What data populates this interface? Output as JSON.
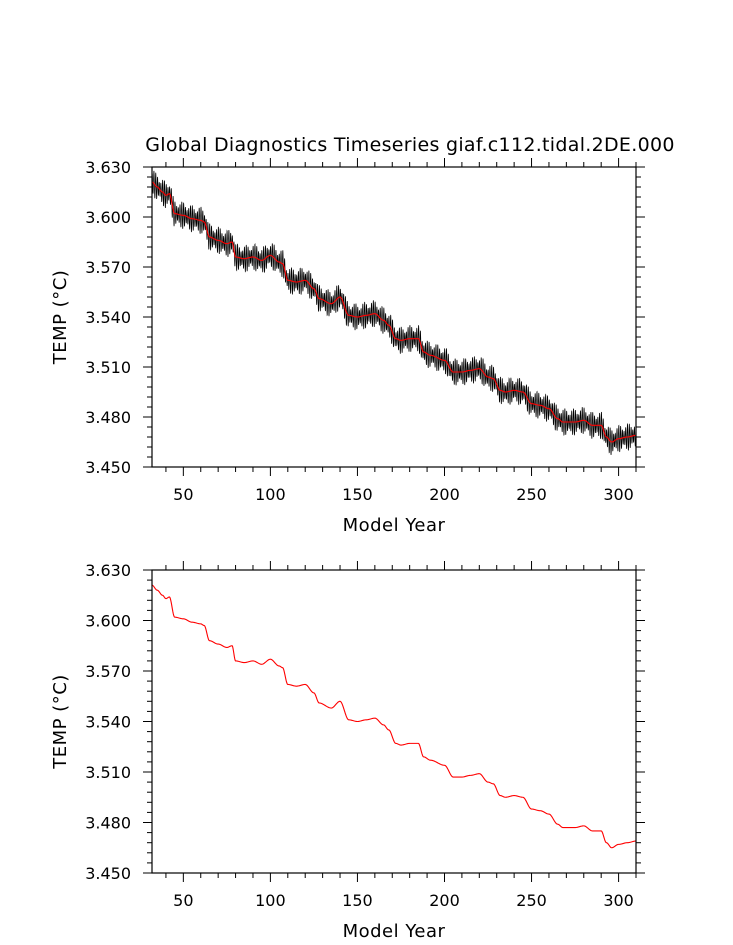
{
  "title": "Global Diagnostics Timeseries giaf.c112.tidal.2DE.000",
  "chart_data": [
    {
      "type": "line",
      "title": "Global Diagnostics Timeseries giaf.c112.tidal.2DE.000",
      "xlabel": "Model Year",
      "ylabel": "TEMP (°C)",
      "xlim": [
        32,
        310
      ],
      "ylim": [
        3.45,
        3.63
      ],
      "xticks": [
        50,
        100,
        150,
        200,
        250,
        300
      ],
      "xtick_labels": [
        "50",
        "100",
        "150",
        "200",
        "250",
        "300"
      ],
      "yticks": [
        3.45,
        3.48,
        3.51,
        3.54,
        3.57,
        3.6,
        3.63
      ],
      "ytick_labels": [
        "3.450",
        "3.480",
        "3.510",
        "3.540",
        "3.570",
        "3.600",
        "3.630"
      ],
      "grid": false,
      "series": [
        {
          "color": "#000000",
          "kind": "monthly",
          "seasonal_amplitude": 0.006
        },
        {
          "color": "#ff0000",
          "kind": "annual"
        }
      ]
    },
    {
      "type": "line",
      "xlabel": "Model Year",
      "ylabel": "TEMP (°C)",
      "xlim": [
        32,
        310
      ],
      "ylim": [
        3.45,
        3.63
      ],
      "xticks": [
        50,
        100,
        150,
        200,
        250,
        300
      ],
      "xtick_labels": [
        "50",
        "100",
        "150",
        "200",
        "250",
        "300"
      ],
      "yticks": [
        3.45,
        3.48,
        3.51,
        3.54,
        3.57,
        3.6,
        3.63
      ],
      "ytick_labels": [
        "3.450",
        "3.480",
        "3.510",
        "3.540",
        "3.570",
        "3.600",
        "3.630"
      ],
      "grid": false,
      "series": [
        {
          "color": "#ff0000",
          "kind": "annual"
        }
      ]
    }
  ],
  "annual_mean_anchors": {
    "x": [
      32,
      35,
      38,
      40,
      42,
      45,
      50,
      55,
      60,
      62,
      65,
      70,
      75,
      78,
      80,
      85,
      90,
      95,
      100,
      105,
      107,
      110,
      115,
      120,
      125,
      128,
      135,
      140,
      145,
      150,
      155,
      160,
      165,
      168,
      172,
      175,
      180,
      185,
      188,
      192,
      200,
      205,
      210,
      215,
      220,
      225,
      228,
      232,
      235,
      240,
      245,
      250,
      255,
      260,
      265,
      268,
      275,
      280,
      285,
      290,
      293,
      296,
      300,
      305,
      310
    ],
    "y": [
      3.621,
      3.618,
      3.615,
      3.613,
      3.614,
      3.602,
      3.601,
      3.599,
      3.598,
      3.597,
      3.588,
      3.586,
      3.584,
      3.585,
      3.576,
      3.575,
      3.576,
      3.574,
      3.577,
      3.573,
      3.572,
      3.562,
      3.561,
      3.562,
      3.557,
      3.551,
      3.548,
      3.552,
      3.541,
      3.54,
      3.541,
      3.542,
      3.538,
      3.535,
      3.527,
      3.526,
      3.527,
      3.527,
      3.519,
      3.517,
      3.514,
      3.507,
      3.507,
      3.508,
      3.509,
      3.504,
      3.503,
      3.496,
      3.495,
      3.496,
      3.495,
      3.488,
      3.487,
      3.485,
      3.479,
      3.477,
      3.477,
      3.478,
      3.475,
      3.475,
      3.468,
      3.465,
      3.467,
      3.468,
      3.469
    ]
  }
}
